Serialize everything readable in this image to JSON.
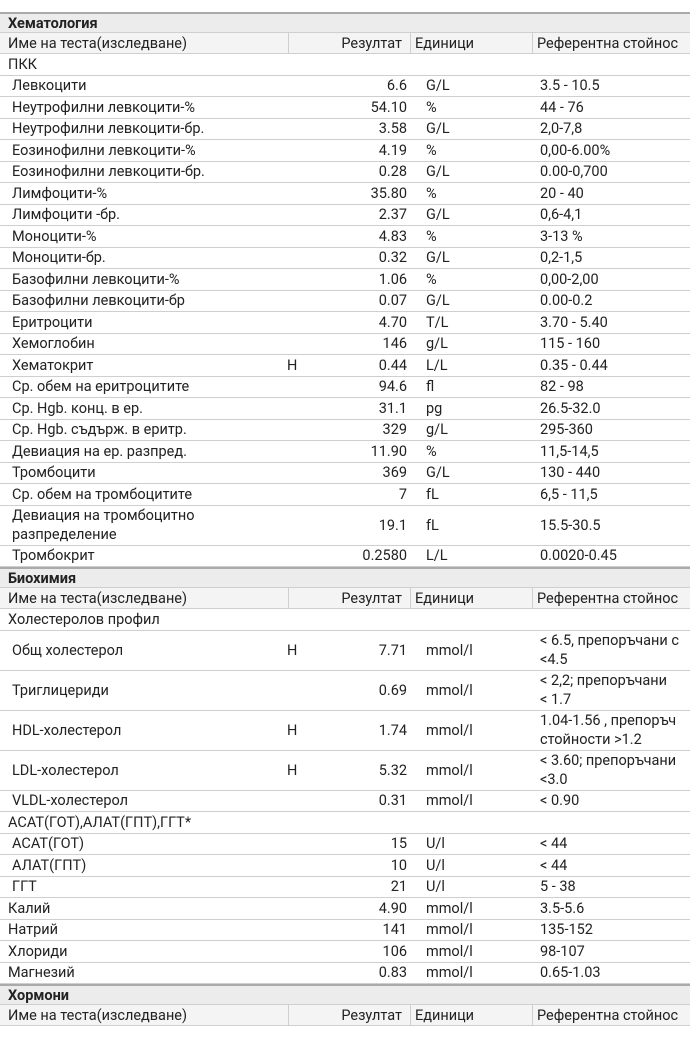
{
  "sections": [
    {
      "title": "Хематология",
      "columns": [
        "Име на теста(изследване)",
        "Резултат",
        "Единици",
        "Референтна стойнос"
      ],
      "rows": [
        {
          "name": "ПКК",
          "items": [
            {
              "name": "Левкоцити",
              "result": "6.6",
              "units": "G/L",
              "reference": "3.5 - 10.5"
            },
            {
              "name": "Неутрофилни левкоцити-%",
              "result": "54.10",
              "units": "%",
              "reference": "44 - 76"
            },
            {
              "name": "Неутрофилни левкоцити-бр.",
              "result": "3.58",
              "units": "G/L",
              "reference": "2,0-7,8"
            },
            {
              "name": "Еозинофилни левкоцити-%",
              "result": "4.19",
              "units": "%",
              "reference": "0,00-6.00%"
            },
            {
              "name": "Еозинофилни левкоцити-бр.",
              "result": "0.28",
              "units": "G/L",
              "reference": "0.00-0,700"
            },
            {
              "name": "Лимфоцити-%",
              "result": "35.80",
              "units": "%",
              "reference": "20 - 40"
            },
            {
              "name": "Лимфоцити -бр.",
              "result": "2.37",
              "units": "G/L",
              "reference": "0,6-4,1"
            },
            {
              "name": "Моноцити-%",
              "result": "4.83",
              "units": "%",
              "reference": "3-13 %"
            },
            {
              "name": "Моноцити-бр.",
              "result": "0.32",
              "units": "G/L",
              "reference": "0,2-1,5"
            },
            {
              "name": "Базофилни левкоцити-%",
              "result": "1.06",
              "units": "%",
              "reference": "0,00-2,00"
            },
            {
              "name": "Базофилни левкоцити-бр",
              "result": "0.07",
              "units": "G/L",
              "reference": "0.00-0.2"
            },
            {
              "name": "Еритроцити",
              "result": "4.70",
              "units": "T/L",
              "reference": "3.70 - 5.40"
            },
            {
              "name": "Хемоглобин",
              "result": "146",
              "units": "g/L",
              "reference": "115 - 160"
            },
            {
              "name": "Хематокрит",
              "flag": "H",
              "result": "0.44",
              "units": "L/L",
              "reference": "0.35 - 0.44"
            },
            {
              "name": "Ср. обем на еритроцитите",
              "result": "94.6",
              "units": "fl",
              "reference": "82 - 98"
            },
            {
              "name": "Ср. Hgb. конц. в ер.",
              "result": "31.1",
              "units": "pg",
              "reference": "26.5-32.0"
            },
            {
              "name": "Ср. Hgb. съдърж. в еритр.",
              "result": "329",
              "units": "g/L",
              "reference": "295-360"
            },
            {
              "name": "Девиация на ер. разпред.",
              "result": "11.90",
              "units": "%",
              "reference": "11,5-14,5"
            },
            {
              "name": "Тромбоцити",
              "result": "369",
              "units": "G/L",
              "reference": "130 - 440"
            },
            {
              "name": "Ср. обем на тромбоцитите",
              "result": "7",
              "units": "fL",
              "reference": "6,5 - 11,5"
            },
            {
              "name": "   Девиация на тромбоцитно\nразпределение",
              "result": "19.1",
              "units": "fL",
              "reference": "15.5-30.5"
            },
            {
              "name": "Тромбокрит",
              "result": "0.2580",
              "units": "L/L",
              "reference": "0.0020-0.45"
            }
          ]
        }
      ]
    },
    {
      "title": "Биохимия",
      "columns": [
        "Име на теста(изследване)",
        "Резултат",
        "Единици",
        "Референтна стойнос"
      ],
      "rows": [
        {
          "name": "Холестеролов профил",
          "items": [
            {
              "name": "Общ холестерол",
              "flag": "H",
              "result": "7.71",
              "units": "mmol/l",
              "reference": "< 6.5, препоръчани с\n<4.5"
            },
            {
              "name": "Триглицериди",
              "result": "0.69",
              "units": "mmol/l",
              "reference": "< 2,2; препоръчани\n< 1.7"
            },
            {
              "name": "HDL-холестерол",
              "flag": "H",
              "result": "1.74",
              "units": "mmol/l",
              "reference": "1.04-1.56 , препоръч\nстойности >1.2"
            },
            {
              "name": "LDL-холестерол",
              "flag": "H",
              "result": "5.32",
              "units": "mmol/l",
              "reference": "< 3.60; препоръчани\n<3.0"
            },
            {
              "name": "VLDL-холестерол",
              "result": "0.31",
              "units": "mmol/l",
              "reference": "< 0.90"
            }
          ]
        },
        {
          "name": "АСАТ(ГОТ),АЛАТ(ГПТ),ГГТ*",
          "items": [
            {
              "name": "АСАТ(ГОТ)",
              "result": "15",
              "units": "U/l",
              "reference": "< 44"
            },
            {
              "name": "АЛАТ(ГПТ)",
              "result": "10",
              "units": "U/l",
              "reference": "< 44"
            },
            {
              "name": "ГГТ",
              "result": "21",
              "units": "U/l",
              "reference": "5 - 38"
            }
          ]
        },
        {
          "name": "Калий",
          "result": "4.90",
          "units": "mmol/l",
          "reference": "3.5-5.6"
        },
        {
          "name": "Натрий",
          "result": "141",
          "units": "mmol/l",
          "reference": "135-152"
        },
        {
          "name": "Хлориди",
          "result": "106",
          "units": "mmol/l",
          "reference": "98-107"
        },
        {
          "name": "Магнезий",
          "result": "0.83",
          "units": "mmol/l",
          "reference": "0.65-1.03"
        }
      ]
    },
    {
      "title": "Хормони",
      "columns": [
        "Име на теста(изследване)",
        "Резултат",
        "Единици",
        "Референтна стойнос"
      ],
      "rows": []
    }
  ]
}
